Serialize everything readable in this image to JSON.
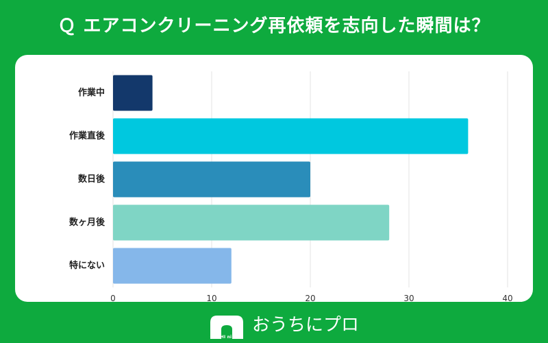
{
  "title": "Ｑ エアコンクリーニング再依頼を志向した瞬間は？",
  "chart_data": {
    "type": "bar",
    "orientation": "horizontal",
    "categories": [
      "作業中",
      "作業直後",
      "数日後",
      "数ヶ月後",
      "特にない"
    ],
    "values": [
      4,
      36,
      20,
      28,
      12
    ],
    "colors": [
      "#13386b",
      "#00c8df",
      "#2a8dba",
      "#7fd5c5",
      "#85b7ea"
    ],
    "xlim": [
      0,
      40
    ],
    "xticks": [
      0,
      10,
      20,
      30,
      40
    ],
    "grid": true,
    "legend": "none",
    "xlabel": "",
    "ylabel": ""
  },
  "footer": {
    "logo_small_text": "OUCHI ni PRO",
    "logo_text": "おうちにプロ"
  }
}
